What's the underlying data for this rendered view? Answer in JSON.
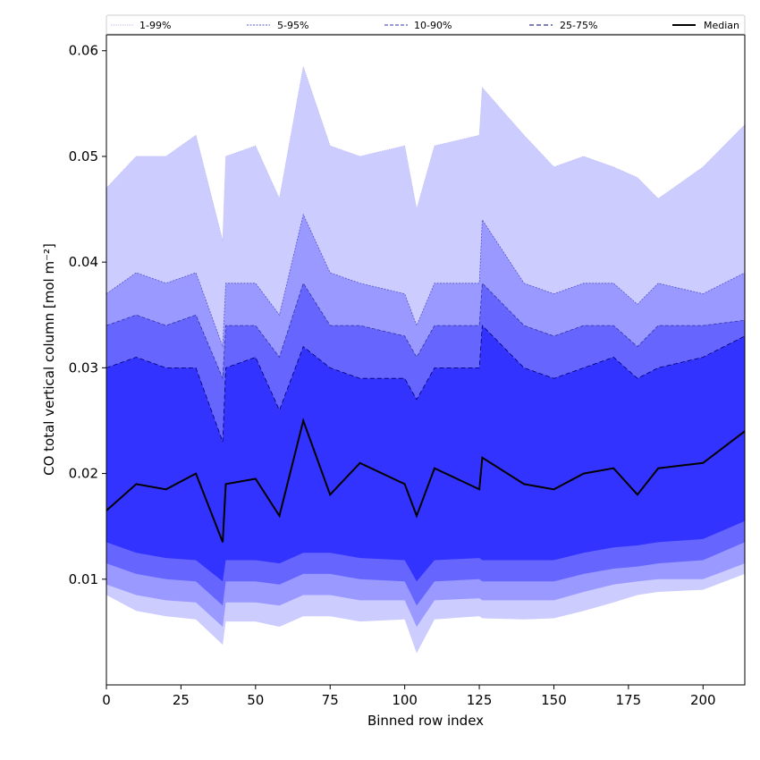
{
  "chart_data": {
    "type": "area",
    "xlabel": "Binned row index",
    "ylabel": "CO total vertical column [mol m⁻²]",
    "xlim": [
      0,
      214
    ],
    "ylim": [
      0.0,
      0.0615
    ],
    "xticks": [
      0,
      25,
      50,
      75,
      100,
      125,
      150,
      175,
      200
    ],
    "yticks": [
      0.01,
      0.02,
      0.03,
      0.04,
      0.05,
      0.06
    ],
    "ytick_labels": [
      "0.01",
      "0.02",
      "0.03",
      "0.04",
      "0.05",
      "0.06"
    ],
    "legend_position": "top",
    "grid": false,
    "x": [
      0,
      10,
      20,
      30,
      39,
      40,
      50,
      58,
      66,
      75,
      85,
      100,
      104,
      110,
      125,
      126,
      140,
      150,
      160,
      170,
      178,
      185,
      200,
      214
    ],
    "series": [
      {
        "name": "1-99%",
        "color": "#ccccff",
        "line_color": "#b8b8f0",
        "lower": [
          0.0085,
          0.007,
          0.0065,
          0.0062,
          0.0038,
          0.006,
          0.006,
          0.0055,
          0.0065,
          0.0065,
          0.006,
          0.0062,
          0.003,
          0.0062,
          0.0065,
          0.0063,
          0.0062,
          0.0063,
          0.007,
          0.0078,
          0.0085,
          0.0088,
          0.009,
          0.0105
        ],
        "upper": [
          0.047,
          0.05,
          0.05,
          0.052,
          0.042,
          0.05,
          0.051,
          0.046,
          0.0585,
          0.051,
          0.05,
          0.051,
          0.045,
          0.051,
          0.052,
          0.0565,
          0.052,
          0.049,
          0.05,
          0.049,
          0.048,
          0.046,
          0.049,
          0.053
        ]
      },
      {
        "name": "5-95%",
        "color": "#9999ff",
        "line_color": "#5555cc",
        "lower": [
          0.0095,
          0.0085,
          0.008,
          0.0078,
          0.0055,
          0.0078,
          0.0078,
          0.0075,
          0.0085,
          0.0085,
          0.008,
          0.008,
          0.0055,
          0.008,
          0.0082,
          0.008,
          0.008,
          0.008,
          0.0088,
          0.0095,
          0.0098,
          0.01,
          0.01,
          0.0115
        ],
        "upper": [
          0.037,
          0.039,
          0.038,
          0.039,
          0.032,
          0.038,
          0.038,
          0.035,
          0.0445,
          0.039,
          0.038,
          0.037,
          0.034,
          0.038,
          0.038,
          0.044,
          0.038,
          0.037,
          0.038,
          0.038,
          0.036,
          0.038,
          0.037,
          0.039
        ]
      },
      {
        "name": "10-90%",
        "color": "#6666ff",
        "line_color": "#3333aa",
        "lower": [
          0.0115,
          0.0105,
          0.01,
          0.0098,
          0.0075,
          0.0098,
          0.0098,
          0.0095,
          0.0105,
          0.0105,
          0.01,
          0.0098,
          0.0075,
          0.0098,
          0.01,
          0.0098,
          0.0098,
          0.0098,
          0.0105,
          0.011,
          0.0112,
          0.0115,
          0.0118,
          0.0135
        ],
        "upper": [
          0.034,
          0.035,
          0.034,
          0.035,
          0.029,
          0.034,
          0.034,
          0.031,
          0.038,
          0.034,
          0.034,
          0.033,
          0.031,
          0.034,
          0.034,
          0.038,
          0.034,
          0.033,
          0.034,
          0.034,
          0.032,
          0.034,
          0.034,
          0.0345
        ]
      },
      {
        "name": "25-75%",
        "color": "#3333ff",
        "line_color": "#000066",
        "lower": [
          0.0135,
          0.0125,
          0.012,
          0.0118,
          0.0098,
          0.0118,
          0.0118,
          0.0115,
          0.0125,
          0.0125,
          0.012,
          0.0118,
          0.0098,
          0.0118,
          0.012,
          0.0118,
          0.0118,
          0.0118,
          0.0125,
          0.013,
          0.0132,
          0.0135,
          0.0138,
          0.0155
        ],
        "upper": [
          0.03,
          0.031,
          0.03,
          0.03,
          0.023,
          0.03,
          0.031,
          0.026,
          0.032,
          0.03,
          0.029,
          0.029,
          0.027,
          0.03,
          0.03,
          0.034,
          0.03,
          0.029,
          0.03,
          0.031,
          0.029,
          0.03,
          0.031,
          0.033
        ]
      },
      {
        "name": "Median",
        "color": "#000000",
        "line_color": "#000000",
        "values": [
          0.0165,
          0.019,
          0.0185,
          0.02,
          0.0135,
          0.019,
          0.0195,
          0.016,
          0.025,
          0.018,
          0.021,
          0.019,
          0.016,
          0.0205,
          0.0185,
          0.0215,
          0.019,
          0.0185,
          0.02,
          0.0205,
          0.018,
          0.0205,
          0.021,
          0.024
        ]
      }
    ]
  }
}
